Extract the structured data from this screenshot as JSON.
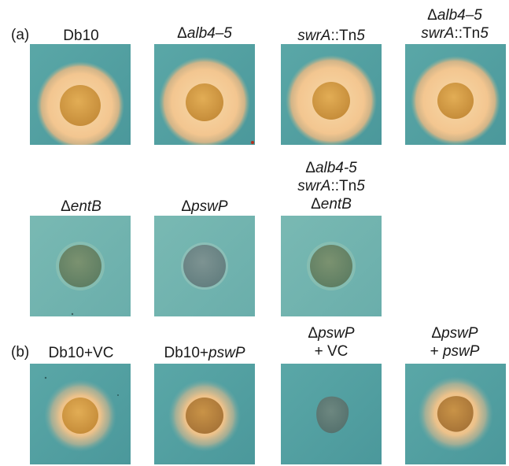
{
  "panels": {
    "a": {
      "letter": "(a)"
    },
    "b": {
      "letter": "(b)"
    }
  },
  "labels": {
    "r1c1": {
      "l1": "Db10"
    },
    "r1c2": {
      "l1_pre": "Δ",
      "l1_it": "alb4–5"
    },
    "r1c3": {
      "l1_it": "swrA",
      "l1_post": "::Tn",
      "l1_num": "5"
    },
    "r1c4": {
      "l1_pre": "Δ",
      "l1_it": "alb4–5",
      "l2_it": "swrA",
      "l2_post": "::Tn",
      "l2_num": "5"
    },
    "r2c1": {
      "l1_pre": "Δ",
      "l1_it": "entB"
    },
    "r2c2": {
      "l1_pre": "Δ",
      "l1_it": "pswP"
    },
    "r2c3": {
      "l1_pre": "Δ",
      "l1_it": "alb4-5",
      "l2_it": "swrA",
      "l2_post": "::Tn",
      "l2_num": "5",
      "l3_pre": "Δ",
      "l3_it": "entB"
    },
    "r3c1": {
      "l1": "Db10+VC"
    },
    "r3c2": {
      "l1_pre": "Db10+",
      "l1_it": "pswP"
    },
    "r3c3": {
      "l1_pre": "Δ",
      "l1_it": "pswP",
      "l2": "+ VC"
    },
    "r3c4": {
      "l1_pre": "Δ",
      "l1_it": "pswP",
      "l2_pre": "+ ",
      "l2_it": "pswP"
    }
  },
  "colors": {
    "plate_teal": "#4f9ea0",
    "halo_orange": "#f2c58e",
    "colony_orange": "#d9a348",
    "colony_green": "#6d8b6b"
  }
}
